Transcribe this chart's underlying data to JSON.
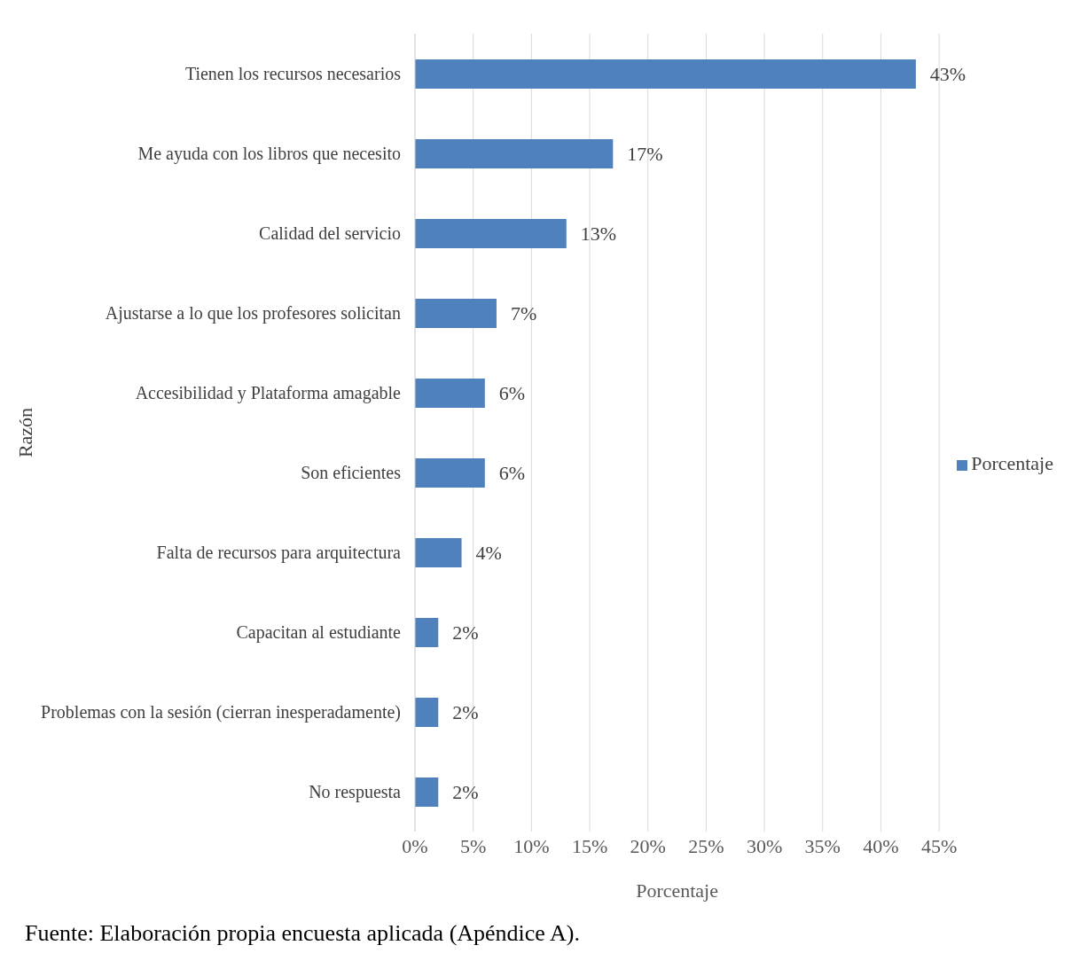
{
  "chart_data": {
    "type": "bar",
    "orientation": "horizontal",
    "xlabel": "Porcentaje",
    "ylabel": "Razón",
    "categories": [
      "Tienen los recursos necesarios",
      "Me ayuda con los libros que necesito",
      "Calidad del servicio",
      "Ajustarse a lo que los profesores solicitan",
      "Accesibilidad y Plataforma amagable",
      "Son eficientes",
      "Falta de recursos para arquitectura",
      "Capacitan al estudiante",
      "Problemas con la sesión (cierran inesperadamente)",
      "No respuesta"
    ],
    "series": [
      {
        "name": "Porcentaje",
        "color": "#4f81bd",
        "values": [
          43,
          17,
          13,
          7,
          6,
          6,
          4,
          2,
          2,
          2
        ],
        "value_labels": [
          "43%",
          "17%",
          "13%",
          "7%",
          "6%",
          "6%",
          "4%",
          "2%",
          "2%",
          "2%"
        ]
      }
    ],
    "xlim": [
      0,
      45
    ],
    "xticks": [
      {
        "value": 0,
        "label": "0%"
      },
      {
        "value": 5,
        "label": "5%"
      },
      {
        "value": 10,
        "label": "10%"
      },
      {
        "value": 15,
        "label": "15%"
      },
      {
        "value": 20,
        "label": "20%"
      },
      {
        "value": 25,
        "label": "25%"
      },
      {
        "value": 30,
        "label": "30%"
      },
      {
        "value": 35,
        "label": "35%"
      },
      {
        "value": 40,
        "label": "40%"
      },
      {
        "value": 45,
        "label": "45%"
      }
    ],
    "grid": "x",
    "legend": "right",
    "annotations": [
      "Fuente: Elaboración propia encuesta aplicada (Apéndice A)."
    ]
  }
}
